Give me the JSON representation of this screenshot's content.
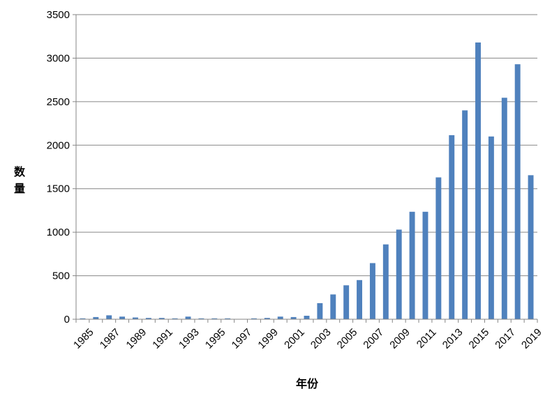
{
  "chart_data": {
    "type": "bar",
    "title": "",
    "xlabel": "年份",
    "ylabel": "数量",
    "ylim": [
      0,
      3500
    ],
    "yticks": [
      0,
      500,
      1000,
      1500,
      2000,
      2500,
      3000,
      3500
    ],
    "grid": true,
    "bar_color": "#4F81BD",
    "categories": [
      "1985",
      "1986",
      "1987",
      "1988",
      "1989",
      "1990",
      "1991",
      "1992",
      "1993",
      "1994",
      "1995",
      "1996",
      "1997",
      "1998",
      "1999",
      "2000",
      "2001",
      "2002",
      "2003",
      "2004",
      "2005",
      "2006",
      "2007",
      "2008",
      "2009",
      "2010",
      "2011",
      "2012",
      "2013",
      "2014",
      "2015",
      "2016",
      "2017",
      "2018",
      "2019"
    ],
    "x_tick_labels": [
      "1985",
      "1987",
      "1989",
      "1991",
      "1993",
      "1995",
      "1997",
      "1999",
      "2001",
      "2003",
      "2005",
      "2007",
      "2009",
      "2011",
      "2013",
      "2015",
      "2017",
      "2019"
    ],
    "values": [
      10,
      25,
      45,
      30,
      20,
      15,
      15,
      10,
      30,
      10,
      10,
      10,
      0,
      10,
      15,
      30,
      25,
      40,
      185,
      285,
      390,
      450,
      645,
      860,
      1030,
      1235,
      1235,
      1630,
      2115,
      2400,
      3180,
      2100,
      2545,
      2930,
      1655
    ]
  }
}
